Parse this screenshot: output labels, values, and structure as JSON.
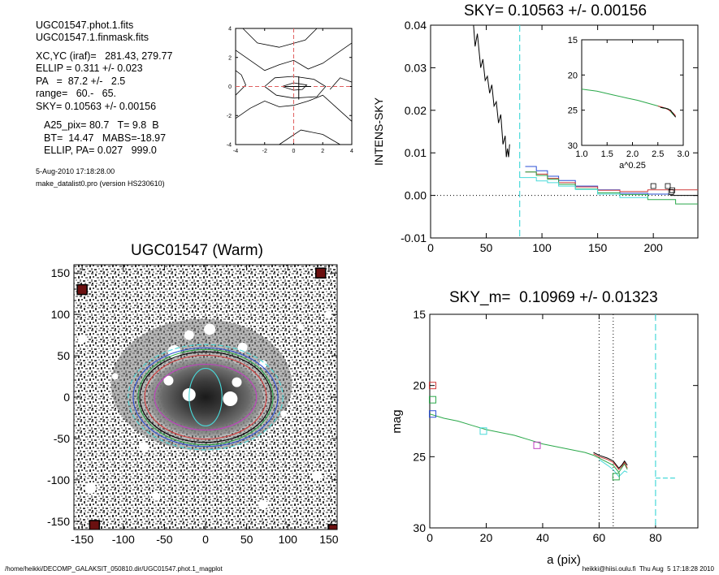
{
  "header": {
    "lines": [
      "UGC01547.phot.1.fits",
      "UGC01547.1.finmask.fits",
      "XC,YC (iraf)=   281.43, 279.77",
      "ELLIP = 0.311 +/- 0.023",
      "PA   =  87.2 +/-   2.5",
      "range=   60.-   65.",
      "SKY= 0.10563 +/- 0.00156",
      "A25_pix= 80.7   T= 9.8  B",
      "BT=  14.47   MABS=-18.97",
      "ELLIP, PA= 0.027   999.0"
    ],
    "date": "5-Aug-2010 17:18:28.00",
    "program": "make_datalist0.pro (version HS230610)"
  },
  "footer": {
    "left": "/home/heikki/DECOMP_GALAKSIT_050810.dir/UGC01547.phot.1_magplot",
    "right": "heikki@hiisi.oulu.fi  Thu Aug  5 17:18:28 2010"
  },
  "chart_data": [
    {
      "type": "contour",
      "title": "",
      "xlim": [
        -4,
        4
      ],
      "ylim": [
        -4,
        4
      ],
      "xticks": [
        "-4",
        "-2",
        "0",
        "2",
        "4"
      ],
      "yticks": [
        "-4",
        "-2",
        "0",
        "2",
        "4"
      ],
      "crosshair": {
        "x": 0,
        "y": 0
      }
    },
    {
      "type": "line",
      "title": "SKY= 0.10563 +/- 0.00156",
      "xlabel": "",
      "ylabel": "INTENS-SKY",
      "xlim": [
        0,
        240
      ],
      "ylim": [
        -0.01,
        0.04
      ],
      "xticks": [
        "0",
        "50",
        "100",
        "150",
        "200"
      ],
      "yticks": [
        "-0.01",
        "0.00",
        "0.01",
        "0.02",
        "0.03",
        "0.04"
      ],
      "vline_x": 80,
      "series": [
        {
          "color": "#000000",
          "points": [
            [
              38,
              0.042
            ],
            [
              40,
              0.035
            ],
            [
              42,
              0.038
            ],
            [
              45,
              0.03
            ],
            [
              47,
              0.032
            ],
            [
              49,
              0.027
            ],
            [
              51,
              0.028
            ],
            [
              53,
              0.024
            ],
            [
              55,
              0.026
            ],
            [
              57,
              0.021
            ],
            [
              59,
              0.022
            ],
            [
              61,
              0.017
            ],
            [
              63,
              0.019
            ],
            [
              65,
              0.012
            ],
            [
              67,
              0.014
            ],
            [
              68,
              0.009
            ],
            [
              69,
              0.011
            ],
            [
              70,
              0.009
            ],
            [
              71,
              0.012
            ]
          ]
        },
        {
          "color": "#2a4fd6",
          "points": [
            [
              85,
              0.0068
            ],
            [
              95,
              0.0068
            ],
            [
              95,
              0.0058
            ],
            [
              105,
              0.0058
            ],
            [
              105,
              0.0045
            ],
            [
              115,
              0.0045
            ],
            [
              115,
              0.0035
            ],
            [
              130,
              0.0035
            ],
            [
              130,
              0.0022
            ],
            [
              150,
              0.0022
            ],
            [
              150,
              0.0013
            ],
            [
              170,
              0.0013
            ],
            [
              170,
              0.0005
            ],
            [
              195,
              0.0005
            ],
            [
              195,
              0.0003
            ],
            [
              215,
              0.0003
            ]
          ]
        },
        {
          "color": "#d03a3a",
          "points": [
            [
              85,
              0.0055
            ],
            [
              95,
              0.0055
            ],
            [
              95,
              0.005
            ],
            [
              105,
              0.005
            ],
            [
              105,
              0.004
            ],
            [
              115,
              0.004
            ],
            [
              115,
              0.003
            ],
            [
              130,
              0.003
            ],
            [
              130,
              0.002
            ],
            [
              150,
              0.002
            ],
            [
              150,
              0.0012
            ],
            [
              170,
              0.0012
            ],
            [
              170,
              0.0009
            ],
            [
              195,
              0.0009
            ],
            [
              195,
              0.0013
            ],
            [
              240,
              0.0013
            ]
          ]
        },
        {
          "color": "#2aa84a",
          "points": [
            [
              85,
              0.0055
            ],
            [
              95,
              0.0055
            ],
            [
              95,
              0.0047
            ],
            [
              105,
              0.0047
            ],
            [
              105,
              0.0038
            ],
            [
              115,
              0.0038
            ],
            [
              115,
              0.0026
            ],
            [
              130,
              0.0026
            ],
            [
              130,
              0.0015
            ],
            [
              150,
              0.0015
            ],
            [
              150,
              0.0006
            ],
            [
              170,
              0.0006
            ],
            [
              170,
              0.0002
            ],
            [
              195,
              0.0002
            ],
            [
              195,
              -0.001
            ],
            [
              220,
              -0.001
            ],
            [
              220,
              -0.002
            ],
            [
              240,
              -0.002
            ]
          ]
        },
        {
          "color": "#48d9d9",
          "points": [
            [
              80,
              0.0042
            ],
            [
              85,
              0.0042
            ],
            [
              85,
              0.0042
            ],
            [
              95,
              0.0042
            ],
            [
              95,
              0.0034
            ],
            [
              105,
              0.0034
            ],
            [
              105,
              0.003
            ],
            [
              115,
              0.003
            ],
            [
              115,
              0.0022
            ],
            [
              130,
              0.0022
            ],
            [
              130,
              0.0014
            ],
            [
              150,
              0.0014
            ],
            [
              150,
              0.0003
            ],
            [
              170,
              0.0003
            ],
            [
              170,
              -0.0005
            ],
            [
              195,
              -0.0005
            ]
          ]
        },
        {
          "color": "#000000",
          "points": [
            [
              215,
              0
            ],
            [
              240,
              0
            ]
          ]
        }
      ],
      "markers": [
        [
          200,
          0.0022
        ],
        [
          213,
          0.0022
        ],
        [
          217,
          0.0012
        ],
        [
          216,
          0.0008
        ]
      ],
      "inset": {
        "type": "line",
        "xlabel": "a^0.25",
        "xlim": [
          1.0,
          3.0
        ],
        "ylim": [
          15,
          30
        ],
        "xticks": [
          "1.0",
          "1.5",
          "2.0",
          "2.5",
          "3.0"
        ],
        "yticks": [
          "15",
          "20",
          "25",
          "30"
        ],
        "series": [
          {
            "color": "#2aa84a",
            "points": [
              [
                1.0,
                22.0
              ],
              [
                1.3,
                22.3
              ],
              [
                1.6,
                22.8
              ],
              [
                1.9,
                23.3
              ],
              [
                2.1,
                23.6
              ],
              [
                2.3,
                24.0
              ],
              [
                2.5,
                24.4
              ],
              [
                2.6,
                24.7
              ],
              [
                2.7,
                24.8
              ],
              [
                2.8,
                25.6
              ],
              [
                2.85,
                25.9
              ]
            ]
          },
          {
            "color": "#d03a3a",
            "points": [
              [
                2.5,
                24.4
              ],
              [
                2.6,
                24.6
              ],
              [
                2.7,
                24.9
              ],
              [
                2.8,
                25.4
              ],
              [
                2.85,
                25.8
              ]
            ]
          },
          {
            "color": "#000000",
            "points": [
              [
                2.55,
                24.6
              ],
              [
                2.65,
                24.7
              ],
              [
                2.75,
                25.0
              ],
              [
                2.8,
                25.5
              ],
              [
                2.85,
                26.0
              ]
            ]
          }
        ]
      }
    },
    {
      "type": "image",
      "title": "UGC01547 (Warm)",
      "xlim": [
        -160,
        160
      ],
      "ylim": [
        -160,
        160
      ],
      "xticks": [
        "-150",
        "-100",
        "-50",
        "0",
        "50",
        "100",
        "150"
      ],
      "yticks": [
        "-150",
        "-100",
        "-50",
        "0",
        "50",
        "100",
        "150"
      ],
      "ellipses": [
        {
          "color": "#000000",
          "a": 80,
          "b": 55
        },
        {
          "color": "#2a4fd6",
          "a": 88,
          "b": 60
        },
        {
          "color": "#d03a3a",
          "a": 74,
          "b": 51
        },
        {
          "color": "#2aa84a",
          "a": 82,
          "b": 58
        },
        {
          "color": "#48d9d9",
          "a": 94,
          "b": 64
        },
        {
          "color": "#c040c0",
          "a": 62,
          "b": 40
        },
        {
          "color": "#48d9d9",
          "a": 20,
          "b": 35
        }
      ],
      "corner_boxes": [
        [
          -150,
          130
        ],
        [
          140,
          150
        ],
        [
          -135,
          -155
        ],
        [
          155,
          -160
        ]
      ]
    },
    {
      "type": "line",
      "title": "SKY_m=  0.10969 +/- 0.01323",
      "xlabel": "a (pix)",
      "ylabel": "mag",
      "xlim": [
        0,
        95
      ],
      "ylim": [
        15,
        30
      ],
      "xticks": [
        "0",
        "20",
        "40",
        "60",
        "80"
      ],
      "yticks": [
        "15",
        "20",
        "25",
        "30"
      ],
      "vlines_dotted": [
        60,
        65
      ],
      "vline_dashed": 80,
      "sky_dash": {
        "y": 26.5,
        "x": [
          80,
          87
        ]
      },
      "series": [
        {
          "color": "#2aa84a",
          "points": [
            [
              0,
              22.0
            ],
            [
              5,
              22.3
            ],
            [
              10,
              22.5
            ],
            [
              15,
              22.8
            ],
            [
              20,
              23.1
            ],
            [
              25,
              23.3
            ],
            [
              30,
              23.5
            ],
            [
              35,
              23.8
            ],
            [
              40,
              24.1
            ],
            [
              45,
              24.3
            ],
            [
              50,
              24.5
            ],
            [
              55,
              24.7
            ],
            [
              58,
              24.9
            ],
            [
              60,
              25.1
            ],
            [
              63,
              25.4
            ],
            [
              65,
              25.6
            ],
            [
              67,
              26.1
            ],
            [
              68,
              25.8
            ],
            [
              69,
              25.5
            ],
            [
              70,
              25.9
            ]
          ]
        },
        {
          "color": "#d03a3a",
          "points": [
            [
              58,
              24.8
            ],
            [
              60,
              25.0
            ],
            [
              63,
              25.2
            ],
            [
              65,
              25.4
            ],
            [
              67,
              25.9
            ],
            [
              68,
              25.7
            ],
            [
              69,
              25.4
            ],
            [
              70,
              25.8
            ]
          ]
        },
        {
          "color": "#000000",
          "points": [
            [
              58,
              24.7
            ],
            [
              60,
              24.9
            ],
            [
              63,
              25.1
            ],
            [
              65,
              25.3
            ],
            [
              67,
              25.8
            ],
            [
              68,
              25.6
            ],
            [
              69,
              25.3
            ],
            [
              70,
              25.6
            ]
          ]
        },
        {
          "color": "#48d9d9",
          "points": [
            [
              60,
              25.2
            ],
            [
              63,
              25.6
            ],
            [
              65,
              25.9
            ],
            [
              67,
              26.4
            ],
            [
              69,
              26.0
            ],
            [
              70,
              26.1
            ]
          ]
        }
      ],
      "markers": [
        {
          "color": "#d03a3a",
          "x": 1,
          "y": 20.0
        },
        {
          "color": "#2aa84a",
          "x": 1,
          "y": 21.0
        },
        {
          "color": "#2a4fd6",
          "x": 1,
          "y": 22.0
        },
        {
          "color": "#48d9d9",
          "x": 19,
          "y": 23.2
        },
        {
          "color": "#c040c0",
          "x": 38,
          "y": 24.2
        },
        {
          "color": "#2aa84a",
          "x": 66,
          "y": 26.4
        }
      ]
    }
  ]
}
